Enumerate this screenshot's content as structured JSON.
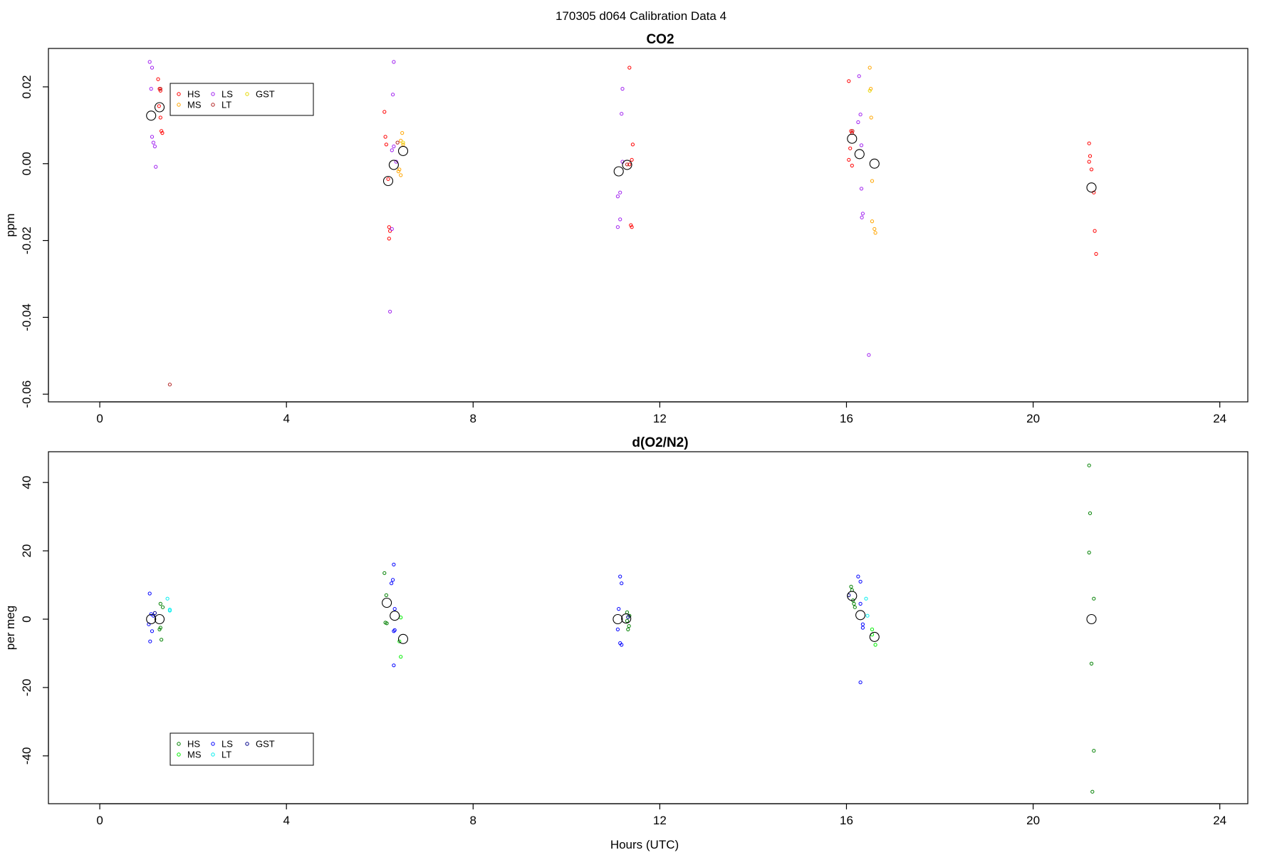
{
  "suptitle": "170305   d064   Calibration Data 4",
  "chart_data": [
    {
      "type": "scatter",
      "title": "CO2",
      "xlabel": "",
      "ylabel": "ppm",
      "xlim": [
        -1.1,
        24.6
      ],
      "ylim": [
        -0.062,
        0.03
      ],
      "xticks": [
        0,
        4,
        8,
        12,
        16,
        20,
        24
      ],
      "yticks": [
        -0.06,
        -0.04,
        -0.02,
        0.0,
        0.02
      ],
      "ytick_labels": [
        "-0.06",
        "-0.04",
        "-0.02",
        "0.00",
        "0.02"
      ],
      "legend_placement": "top-left",
      "series": [
        {
          "name": "HS",
          "color": "#ff0000",
          "points": [
            [
              1.25,
              0.022
            ],
            [
              1.28,
              0.0195
            ],
            [
              1.3,
              0.019
            ],
            [
              1.27,
              0.015
            ],
            [
              1.3,
              0.012
            ],
            [
              1.32,
              0.0085
            ],
            [
              1.34,
              0.008
            ],
            [
              6.1,
              0.0135
            ],
            [
              6.12,
              0.007
            ],
            [
              6.14,
              0.005
            ],
            [
              6.18,
              -0.004
            ],
            [
              6.2,
              -0.0165
            ],
            [
              6.22,
              -0.0175
            ],
            [
              6.2,
              -0.0195
            ],
            [
              11.35,
              0.025
            ],
            [
              11.42,
              0.005
            ],
            [
              11.4,
              0.001
            ],
            [
              11.35,
              -0.0002
            ],
            [
              11.38,
              -0.016
            ],
            [
              11.4,
              -0.0165
            ],
            [
              16.05,
              0.0215
            ],
            [
              16.1,
              0.0085
            ],
            [
              16.12,
              0.008
            ],
            [
              16.08,
              0.004
            ],
            [
              16.05,
              0.001
            ],
            [
              16.12,
              -0.0005
            ],
            [
              21.2,
              0.0053
            ],
            [
              21.22,
              0.002
            ],
            [
              21.2,
              0.0005
            ],
            [
              21.25,
              -0.0015
            ],
            [
              21.3,
              -0.0075
            ],
            [
              21.32,
              -0.0175
            ],
            [
              21.35,
              -0.0235
            ]
          ]
        },
        {
          "name": "MS",
          "color": "#ffa500",
          "points": [
            [
              6.48,
              0.008
            ],
            [
              6.45,
              0.006
            ],
            [
              6.5,
              0.005
            ],
            [
              6.42,
              -0.0015
            ],
            [
              6.45,
              -0.003
            ],
            [
              6.4,
              -0.002
            ],
            [
              16.5,
              0.025
            ],
            [
              16.52,
              0.0195
            ],
            [
              16.53,
              0.012
            ],
            [
              16.55,
              -0.0045
            ],
            [
              16.55,
              -0.015
            ],
            [
              16.6,
              -0.017
            ],
            [
              16.62,
              -0.018
            ]
          ]
        },
        {
          "name": "LS",
          "color": "#a020f0",
          "points": [
            [
              1.07,
              0.0265
            ],
            [
              1.12,
              0.025
            ],
            [
              1.1,
              0.0195
            ],
            [
              1.12,
              0.007
            ],
            [
              1.15,
              0.0055
            ],
            [
              1.18,
              0.0045
            ],
            [
              1.2,
              -0.0008
            ],
            [
              6.3,
              0.0265
            ],
            [
              6.28,
              0.018
            ],
            [
              6.3,
              0.0045
            ],
            [
              6.26,
              0.0035
            ],
            [
              6.35,
              0.0005
            ],
            [
              6.26,
              -0.017
            ],
            [
              6.22,
              -0.0385
            ],
            [
              11.2,
              0.0195
            ],
            [
              11.18,
              0.013
            ],
            [
              11.2,
              0.0005
            ],
            [
              11.15,
              -0.0075
            ],
            [
              11.1,
              -0.0085
            ],
            [
              11.15,
              -0.0145
            ],
            [
              11.1,
              -0.0165
            ],
            [
              16.27,
              0.0228
            ],
            [
              16.3,
              0.0128
            ],
            [
              16.25,
              0.0108
            ],
            [
              16.32,
              0.0048
            ],
            [
              16.32,
              -0.0065
            ],
            [
              16.35,
              -0.013
            ],
            [
              16.33,
              -0.014
            ],
            [
              16.48,
              -0.0498
            ]
          ]
        },
        {
          "name": "LT",
          "color": "#b22222",
          "points": [
            [
              1.5,
              -0.0575
            ],
            [
              1.3,
              0.0195
            ],
            [
              11.3,
              -0.0002
            ],
            [
              16.13,
              0.0085
            ],
            [
              6.38,
              0.0055
            ]
          ]
        },
        {
          "name": "GST",
          "color": "#e6d800",
          "points": [
            [
              6.5,
              0.0055
            ],
            [
              16.5,
              0.019
            ]
          ]
        },
        {
          "name": "",
          "color": "#000000",
          "marker": "large-circle",
          "points": [
            [
              1.1,
              0.0125
            ],
            [
              1.28,
              0.0147
            ],
            [
              6.18,
              -0.0045
            ],
            [
              6.3,
              -0.0003
            ],
            [
              6.5,
              0.0033
            ],
            [
              11.12,
              -0.002
            ],
            [
              11.3,
              -0.0003
            ],
            [
              16.12,
              0.0065
            ],
            [
              16.28,
              0.0025
            ],
            [
              16.6,
              0.0
            ],
            [
              21.25,
              -0.0062
            ]
          ]
        }
      ]
    },
    {
      "type": "scatter",
      "title": "d(O2/N2)",
      "xlabel": "Hours (UTC)",
      "ylabel": "per meg",
      "xlim": [
        -1.1,
        24.6
      ],
      "ylim": [
        -54,
        49
      ],
      "xticks": [
        0,
        4,
        8,
        12,
        16,
        20,
        24
      ],
      "yticks": [
        -40,
        -20,
        0,
        20,
        40
      ],
      "ytick_labels": [
        "-40",
        "-20",
        "0",
        "20",
        "40"
      ],
      "legend_placement": "bottom-left",
      "series": [
        {
          "name": "HS",
          "color": "#008000",
          "points": [
            [
              1.3,
              4.5
            ],
            [
              1.35,
              3.5
            ],
            [
              1.3,
              -2.5
            ],
            [
              1.28,
              -3.0
            ],
            [
              1.32,
              -6.0
            ],
            [
              6.1,
              13.5
            ],
            [
              6.14,
              7.0
            ],
            [
              6.12,
              -1.0
            ],
            [
              6.15,
              -1.2
            ],
            [
              11.3,
              2.0
            ],
            [
              11.35,
              1.0
            ],
            [
              11.3,
              -0.5
            ],
            [
              11.34,
              -2.0
            ],
            [
              11.32,
              -3.0
            ],
            [
              16.1,
              9.5
            ],
            [
              16.12,
              8.5
            ],
            [
              16.14,
              5.5
            ],
            [
              16.16,
              4.5
            ],
            [
              16.18,
              3.5
            ],
            [
              21.2,
              45.0
            ],
            [
              21.22,
              31.0
            ],
            [
              21.2,
              19.5
            ],
            [
              21.3,
              6.0
            ],
            [
              21.25,
              -13.0
            ],
            [
              21.3,
              -38.5
            ],
            [
              21.27,
              -50.5
            ]
          ]
        },
        {
          "name": "MS",
          "color": "#00ee00",
          "points": [
            [
              6.45,
              0.5
            ],
            [
              6.42,
              -6.5
            ],
            [
              6.45,
              -11.0
            ],
            [
              16.55,
              -3.0
            ],
            [
              16.55,
              -4.5
            ],
            [
              16.62,
              -7.5
            ]
          ]
        },
        {
          "name": "LS",
          "color": "#0000ff",
          "points": [
            [
              1.07,
              7.5
            ],
            [
              1.1,
              1.5
            ],
            [
              1.15,
              1.0
            ],
            [
              1.05,
              -1.5
            ],
            [
              1.12,
              -3.5
            ],
            [
              1.08,
              -6.5
            ],
            [
              6.3,
              16.0
            ],
            [
              6.28,
              11.5
            ],
            [
              6.25,
              10.5
            ],
            [
              6.32,
              3.0
            ],
            [
              6.3,
              -3.5
            ],
            [
              6.32,
              -3.2
            ],
            [
              6.3,
              -13.5
            ],
            [
              11.15,
              12.5
            ],
            [
              11.18,
              10.5
            ],
            [
              11.12,
              3.0
            ],
            [
              11.1,
              -3.0
            ],
            [
              11.15,
              -7.0
            ],
            [
              11.18,
              -7.5
            ],
            [
              16.25,
              12.5
            ],
            [
              16.3,
              11.0
            ],
            [
              16.3,
              4.5
            ],
            [
              16.35,
              -1.5
            ],
            [
              16.35,
              -2.5
            ],
            [
              16.3,
              -18.5
            ]
          ]
        },
        {
          "name": "LT",
          "color": "#00eeee",
          "points": [
            [
              1.45,
              6.0
            ],
            [
              1.5,
              2.8
            ],
            [
              1.5,
              2.5
            ],
            [
              16.42,
              6.0
            ],
            [
              16.45,
              1.0
            ]
          ]
        },
        {
          "name": "GST",
          "color": "#00008b",
          "points": [
            [
              1.18,
              1.8
            ],
            [
              11.32,
              0.6
            ],
            [
              16.05,
              7.0
            ]
          ]
        },
        {
          "name": "",
          "color": "#000000",
          "marker": "large-circle",
          "points": [
            [
              1.1,
              0.0
            ],
            [
              1.28,
              0.0
            ],
            [
              6.15,
              4.8
            ],
            [
              6.32,
              1.0
            ],
            [
              6.5,
              -5.8
            ],
            [
              11.1,
              0.0
            ],
            [
              11.28,
              0.2
            ],
            [
              16.12,
              6.8
            ],
            [
              16.3,
              1.2
            ],
            [
              16.6,
              -5.2
            ],
            [
              21.25,
              0.0
            ]
          ]
        }
      ]
    }
  ]
}
